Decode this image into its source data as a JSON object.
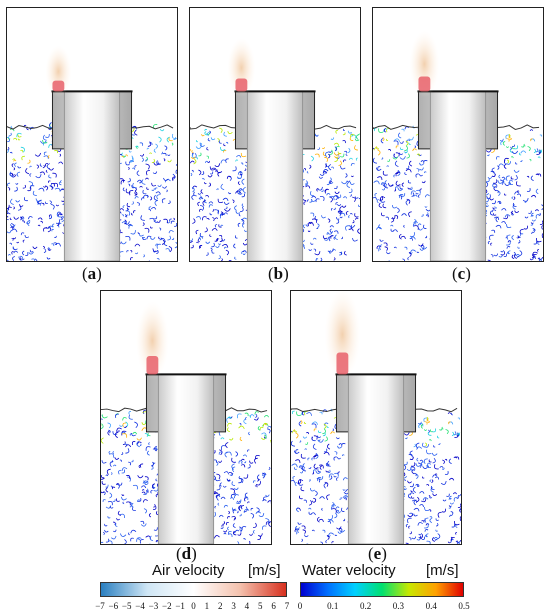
{
  "panels": [
    {
      "id": "a",
      "label": "a",
      "plume": 0.2
    },
    {
      "id": "b",
      "label": "b",
      "plume": 0.35
    },
    {
      "id": "c",
      "label": "c",
      "plume": 0.5
    },
    {
      "id": "d",
      "label": "d",
      "plume": 0.75
    },
    {
      "id": "e",
      "label": "e",
      "plume": 1.0
    }
  ],
  "legend": {
    "air": {
      "title": "Air velocity",
      "unit": "[m/s]",
      "ticks": [
        "−7",
        "−6",
        "−5",
        "−4",
        "−3",
        "−2",
        "−1",
        "0",
        "1",
        "2",
        "3",
        "4",
        "5",
        "6",
        "7"
      ],
      "range": [
        -7,
        7
      ],
      "colors": [
        "#2a7fc0",
        "#cfe6f5",
        "#ffffff",
        "#f4c2ae",
        "#d7301f"
      ]
    },
    "water": {
      "title": "Water velocity",
      "unit": "[m/s]",
      "ticks": [
        "0",
        "0.1",
        "0.2",
        "0.3",
        "0.4",
        "0.5"
      ],
      "range": [
        0,
        0.5
      ],
      "colors": [
        "#0000d0",
        "#0070ff",
        "#00d0ff",
        "#00e070",
        "#c8e800",
        "#ffa000",
        "#e00000"
      ]
    }
  }
}
